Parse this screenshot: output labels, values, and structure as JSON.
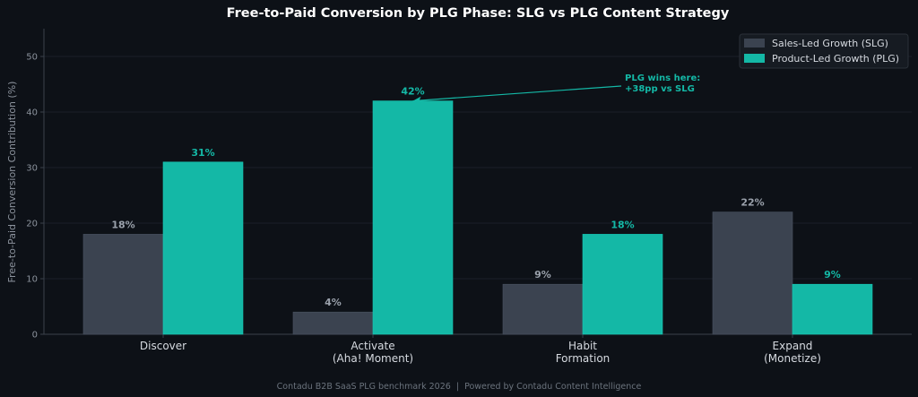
{
  "chart_data": {
    "type": "bar",
    "title": "Free-to-Paid Conversion by PLG Phase: SLG vs PLG Content Strategy",
    "xlabel": "",
    "ylabel": "Free-to-Paid Conversion Contribution (%)",
    "ylim": [
      0,
      55
    ],
    "yticks": [
      0,
      10,
      20,
      30,
      40,
      50
    ],
    "grid": true,
    "legend_position": "top-right",
    "categories": [
      [
        "Discover"
      ],
      [
        "Activate",
        "(Aha! Moment)"
      ],
      [
        "Habit",
        "Formation"
      ],
      [
        "Expand",
        "(Monetize)"
      ]
    ],
    "series": [
      {
        "name": "Sales-Led Growth (SLG)",
        "values": [
          18,
          4,
          9,
          22
        ],
        "labels": [
          "18%",
          "4%",
          "9%",
          "22%"
        ],
        "color": "#3b4350",
        "label_color": "#9aa1ab"
      },
      {
        "name": "Product-Led Growth (PLG)",
        "values": [
          31,
          42,
          18,
          9
        ],
        "labels": [
          "31%",
          "42%",
          "18%",
          "9%"
        ],
        "color": "#14b8a6",
        "label_color": "#14b8a6"
      }
    ],
    "annotation": {
      "lines": [
        "PLG wins here:",
        "+38pp vs SLG"
      ],
      "points_to": {
        "category_index": 1,
        "series_index": 1
      },
      "color": "#14b8a6"
    },
    "footer": "Contadu B2B SaaS PLG benchmark 2026  |  Powered by Contadu Content Intelligence"
  },
  "colors": {
    "background": "#0d1117",
    "axis": "#3a414b",
    "grid": "#1a2029",
    "tick_text": "#8b929c",
    "category_text": "#d6dae0",
    "title_text": "#ffffff",
    "legend_bg": "#161b22",
    "legend_border": "#2a3038",
    "legend_text": "#d6dae0",
    "footer_text": "#6b737d"
  }
}
